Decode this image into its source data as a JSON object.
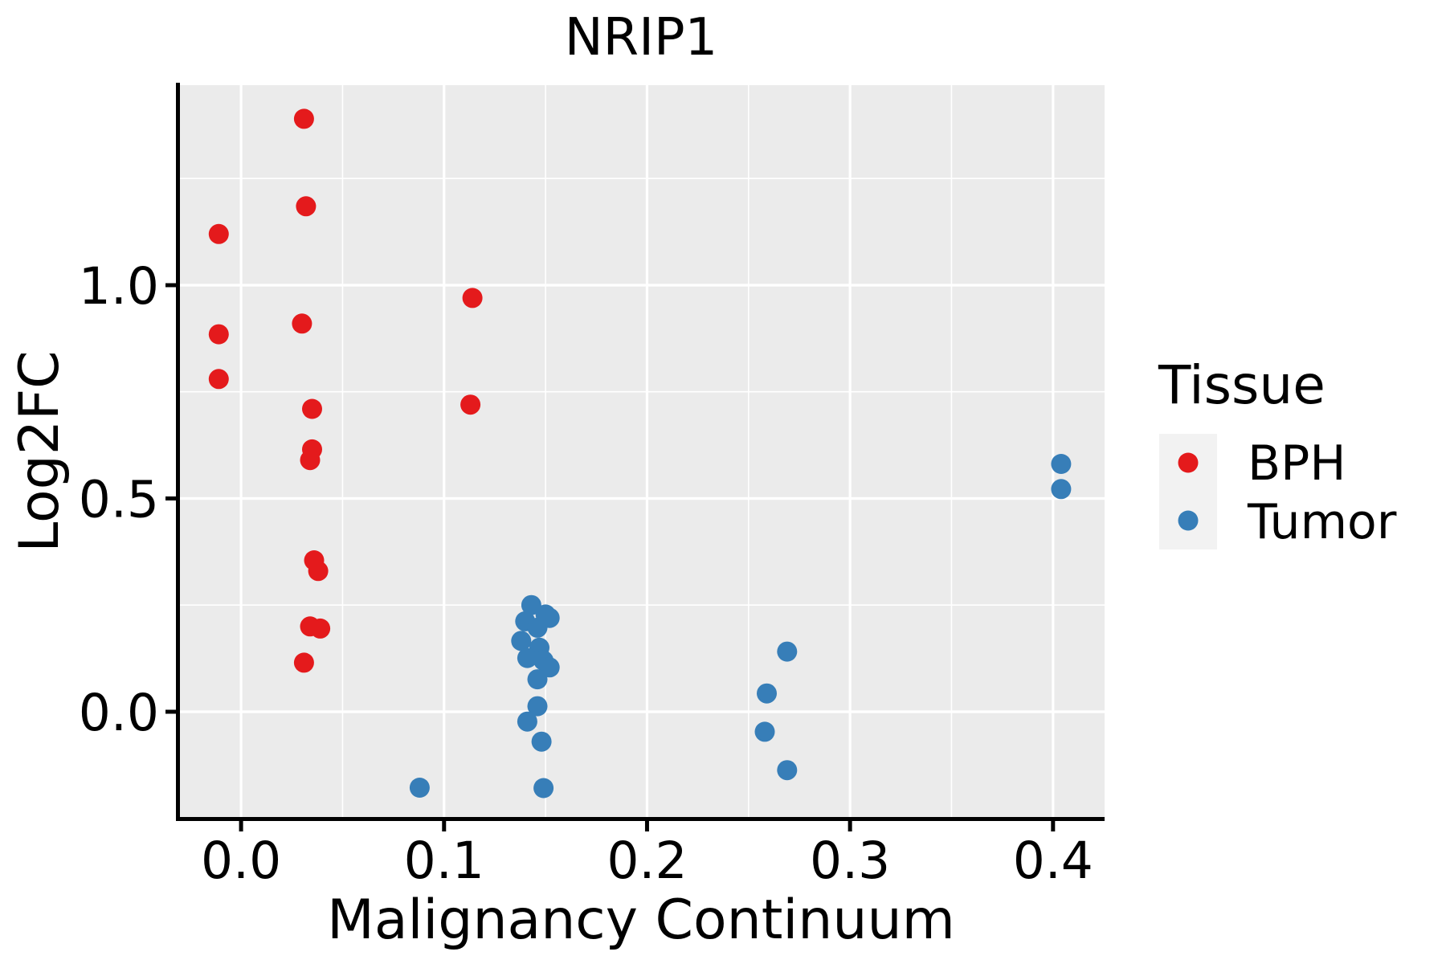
{
  "figure": {
    "title": "NRIP1"
  },
  "chart_data": {
    "type": "scatter",
    "title": "NRIP1",
    "xlabel": "Malignancy Continuum",
    "ylabel": "Log2FC",
    "grid": true,
    "panel_bg": "#EBEBEB",
    "grid_color": "#FFFFFF",
    "axis_color": "#000000",
    "legend": {
      "title": "Tissue",
      "position": "right",
      "key_bg": "#F2F2F2",
      "entries": [
        {
          "label": "BPH",
          "color": "#E41A1C"
        },
        {
          "label": "Tumor",
          "color": "#377EB8"
        }
      ]
    },
    "xlim": [
      -0.0309,
      0.4254
    ],
    "ylim": [
      -0.2505,
      1.4689
    ],
    "x_ticks": {
      "values": [
        0.0,
        0.1,
        0.2,
        0.3,
        0.4
      ],
      "labels": [
        "0.0",
        "0.1",
        "0.2",
        "0.3",
        "0.4"
      ]
    },
    "y_ticks": {
      "values": [
        0.0,
        0.5,
        1.0
      ],
      "labels": [
        "0.0",
        "0.5",
        "1.0"
      ]
    },
    "x_minor": [
      0.05,
      0.15,
      0.25,
      0.35
    ],
    "y_minor": [
      0.25,
      0.75,
      1.25
    ],
    "point_radius": 12.5,
    "series": [
      {
        "name": "BPH",
        "color": "#E41A1C",
        "points": [
          [
            0.031,
            1.39
          ],
          [
            0.032,
            1.185
          ],
          [
            -0.011,
            1.12
          ],
          [
            0.03,
            0.91
          ],
          [
            -0.011,
            0.885
          ],
          [
            -0.011,
            0.78
          ],
          [
            0.035,
            0.71
          ],
          [
            0.035,
            0.615
          ],
          [
            0.034,
            0.59
          ],
          [
            0.036,
            0.355
          ],
          [
            0.038,
            0.33
          ],
          [
            0.034,
            0.2
          ],
          [
            0.039,
            0.195
          ],
          [
            0.031,
            0.115
          ],
          [
            0.114,
            0.97
          ],
          [
            0.113,
            0.72
          ]
        ]
      },
      {
        "name": "Tumor",
        "color": "#377EB8",
        "points": [
          [
            0.088,
            -0.178
          ],
          [
            0.143,
            0.25
          ],
          [
            0.15,
            0.228
          ],
          [
            0.152,
            0.22
          ],
          [
            0.14,
            0.212
          ],
          [
            0.146,
            0.197
          ],
          [
            0.138,
            0.166
          ],
          [
            0.147,
            0.15
          ],
          [
            0.141,
            0.126
          ],
          [
            0.149,
            0.12
          ],
          [
            0.152,
            0.104
          ],
          [
            0.146,
            0.076
          ],
          [
            0.146,
            0.013
          ],
          [
            0.141,
            -0.023
          ],
          [
            0.148,
            -0.07
          ],
          [
            0.149,
            -0.179
          ],
          [
            0.269,
            0.141
          ],
          [
            0.259,
            0.043
          ],
          [
            0.258,
            -0.047
          ],
          [
            0.269,
            -0.137
          ],
          [
            0.404,
            0.581
          ],
          [
            0.404,
            0.522
          ]
        ]
      }
    ]
  }
}
